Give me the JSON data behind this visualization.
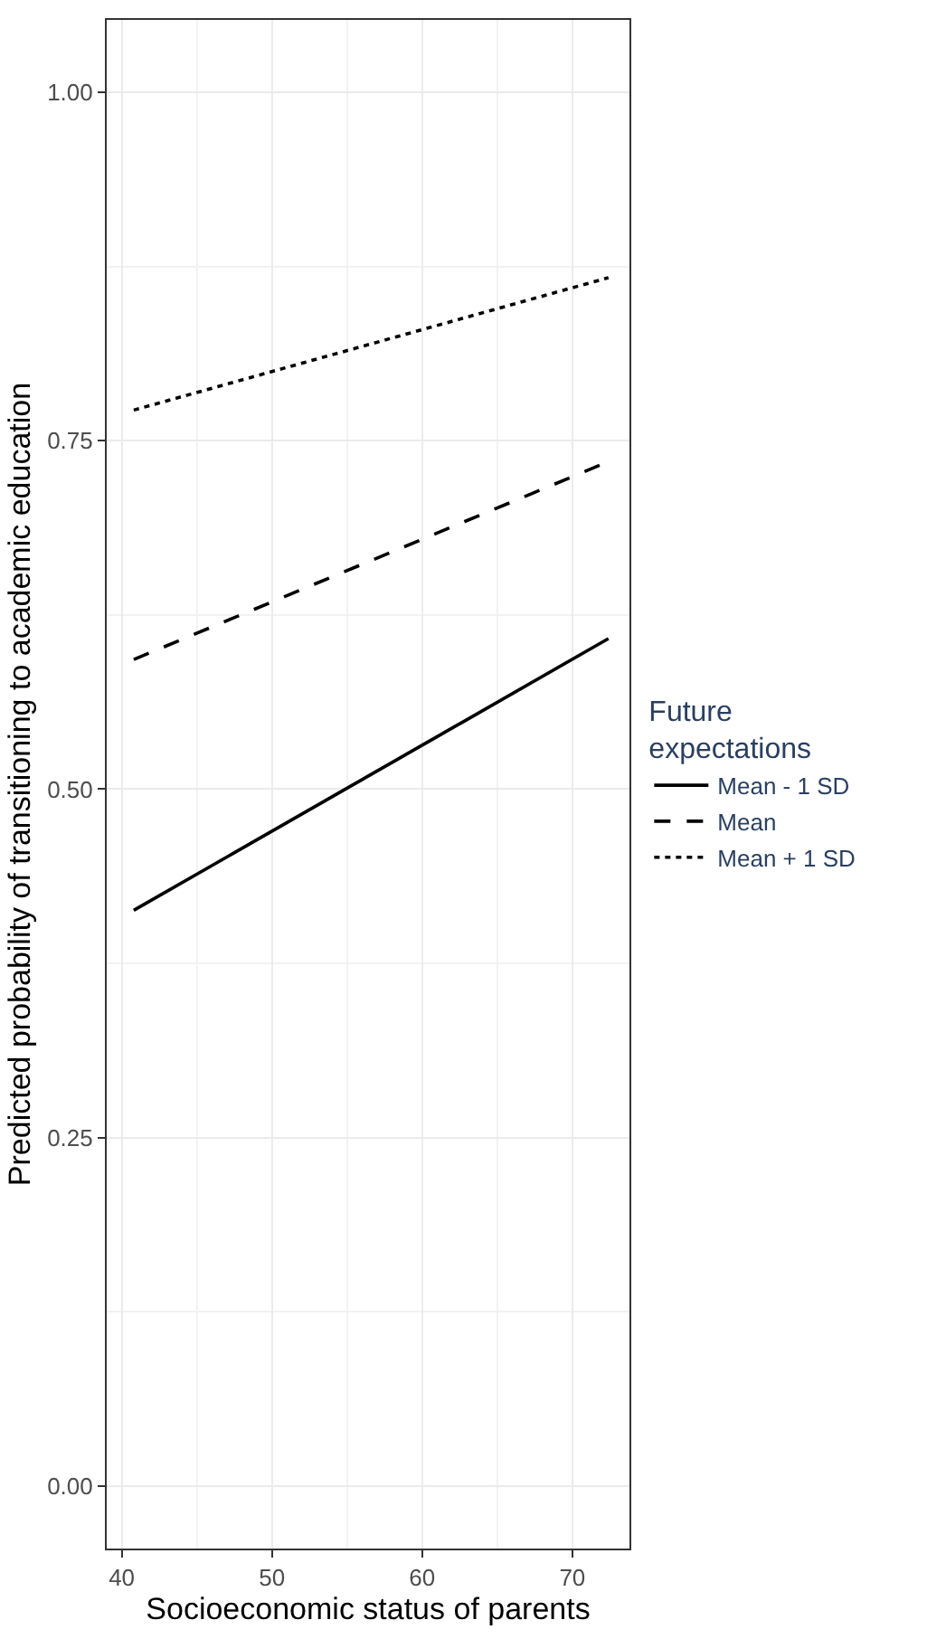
{
  "chart_data": {
    "type": "line",
    "xlabel": "Socioeconomic status of parents",
    "ylabel": "Predicted probability of transitioning to academic education",
    "legend_title": "Future expectations",
    "legend": "right",
    "grid": true,
    "marker": "none",
    "xlim": [
      39,
      73.8
    ],
    "xticks": [
      40,
      50,
      60,
      70
    ],
    "ylim": [
      -0.045,
      1.052
    ],
    "yticks": [
      {
        "value": 0,
        "label": "0.00"
      },
      {
        "value": 0.25,
        "label": "0.25"
      },
      {
        "value": 0.5,
        "label": "0.50"
      },
      {
        "value": 0.75,
        "label": "0.75"
      },
      {
        "value": 1,
        "label": "1.00"
      }
    ],
    "x": [
      40.8,
      72.4
    ],
    "series": [
      {
        "name": "Mean - 1 SD",
        "color": "#000000",
        "line_style": "solid",
        "values": [
          0.413,
          0.608
        ]
      },
      {
        "name": "Mean",
        "color": "#000000",
        "line_style": "dashed",
        "values": [
          0.593,
          0.735
        ]
      },
      {
        "name": "Mean + 1 SD",
        "color": "#000000",
        "line_style": "dotted",
        "values": [
          0.772,
          0.867
        ]
      }
    ]
  }
}
